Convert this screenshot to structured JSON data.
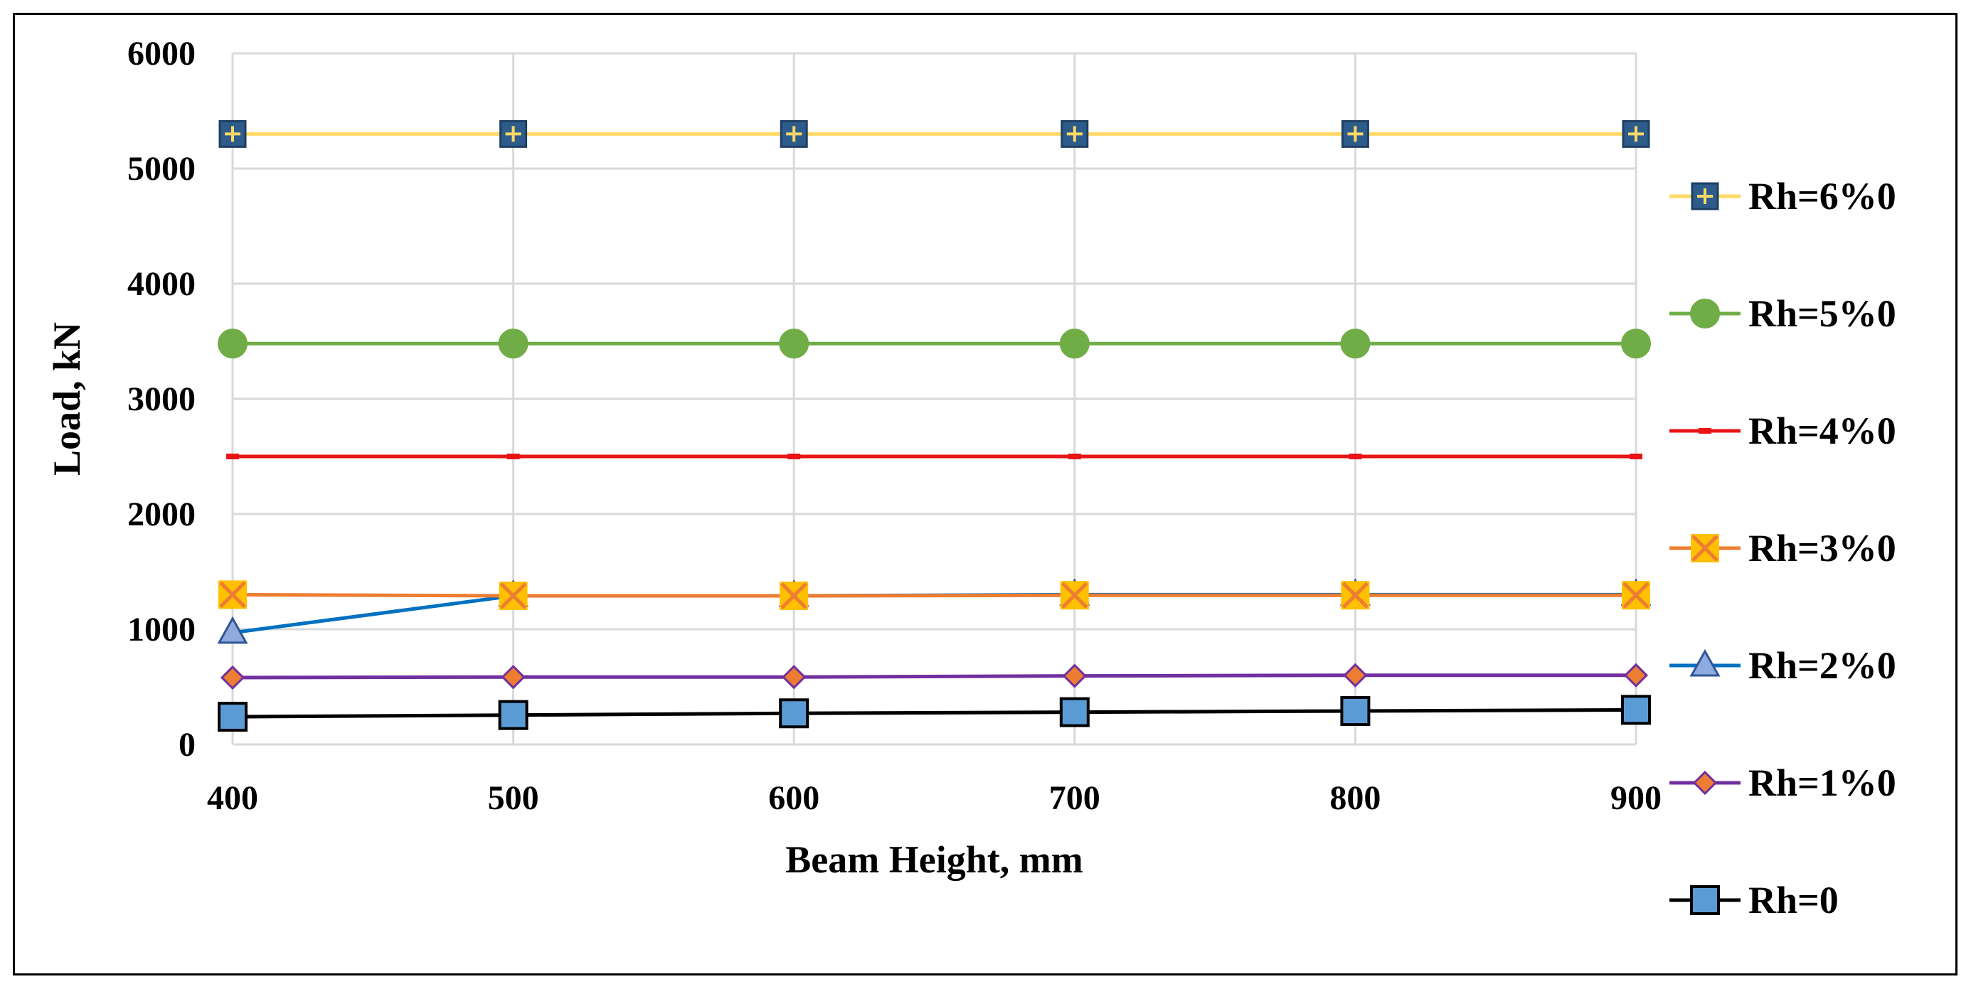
{
  "chart_data": {
    "type": "line",
    "title": "",
    "xlabel": "Beam Height, mm",
    "ylabel": "Load, kN",
    "x": [
      400,
      500,
      600,
      700,
      800,
      900
    ],
    "xlim": [
      400,
      900
    ],
    "ylim": [
      0,
      6000
    ],
    "x_ticks": [
      "400",
      "500",
      "600",
      "700",
      "800",
      "900"
    ],
    "y_ticks": [
      "0",
      "1000",
      "2000",
      "3000",
      "4000",
      "5000",
      "6000"
    ],
    "grid": true,
    "legend_position": "right",
    "series": [
      {
        "name": "Rh=6%0",
        "values": [
          5300,
          5300,
          5300,
          5300,
          5300,
          5300
        ],
        "line_color": "#FFD966",
        "marker": "square-plus",
        "marker_fill": "#2E5C8A",
        "marker_stroke": "#1F3F63",
        "marker_symbol_color": "#FFD966"
      },
      {
        "name": "Rh=5%0",
        "values": [
          3480,
          3480,
          3480,
          3480,
          3480,
          3480
        ],
        "line_color": "#70AD47",
        "marker": "circle",
        "marker_fill": "#70AD47",
        "marker_stroke": "#70AD47"
      },
      {
        "name": "Rh=4%0",
        "values": [
          2500,
          2500,
          2500,
          2500,
          2500,
          2500
        ],
        "line_color": "#E81416",
        "marker": "dash",
        "marker_fill": "#E81416",
        "marker_stroke": "#E81416"
      },
      {
        "name": "Rh=3%0",
        "values": [
          1300,
          1290,
          1290,
          1295,
          1295,
          1295
        ],
        "line_color": "#ED7D31",
        "marker": "x-square",
        "marker_fill": "#FFC000",
        "marker_stroke": "#ED7D31"
      },
      {
        "name": "Rh=2%0",
        "values": [
          970,
          1290,
          1290,
          1300,
          1300,
          1300
        ],
        "line_color": "#0070C0",
        "marker": "triangle",
        "marker_fill": "#8FAADC",
        "marker_stroke": "#2F5597"
      },
      {
        "name": "Rh=1%0",
        "values": [
          580,
          585,
          585,
          595,
          600,
          600
        ],
        "line_color": "#7030A0",
        "marker": "diamond",
        "marker_fill": "#ED7D31",
        "marker_stroke": "#7030A0"
      },
      {
        "name": "Rh=0",
        "values": [
          240,
          255,
          270,
          280,
          290,
          300
        ],
        "line_color": "#000000",
        "marker": "square",
        "marker_fill": "#5B9BD5",
        "marker_stroke": "#000000"
      }
    ]
  }
}
